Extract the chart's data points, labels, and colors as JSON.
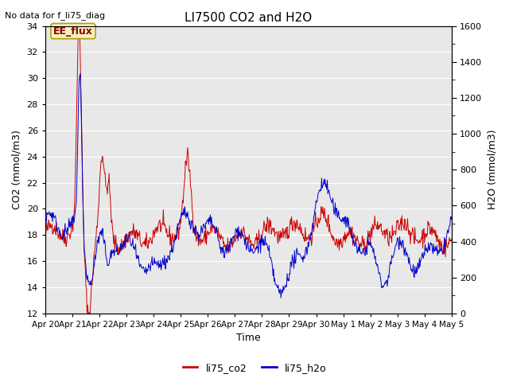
{
  "title": "LI7500 CO2 and H2O",
  "no_data_text": "No data for f_li75_diag",
  "xlabel": "Time",
  "ylabel_left": "CO2 (mmol/m3)",
  "ylabel_right": "H2O (mmol/m3)",
  "ylim_left": [
    12,
    34
  ],
  "ylim_right": [
    0,
    1600
  ],
  "yticks_left": [
    12,
    14,
    16,
    18,
    20,
    22,
    24,
    26,
    28,
    30,
    32,
    34
  ],
  "yticks_right_major": [
    0,
    200,
    400,
    600,
    800,
    1000,
    1200,
    1400,
    1600
  ],
  "yticks_right_minor": [
    100,
    300,
    500,
    700,
    900,
    1100,
    1300,
    1500
  ],
  "xtick_labels": [
    "Apr 20",
    "Apr 21",
    "Apr 22",
    "Apr 23",
    "Apr 24",
    "Apr 25",
    "Apr 26",
    "Apr 27",
    "Apr 28",
    "Apr 29",
    "Apr 30",
    "May 1",
    "May 2",
    "May 3",
    "May 4",
    "May 5"
  ],
  "annotation_text": "EE_flux",
  "bg_color": "#e8e8e8",
  "line_co2_color": "#cc0000",
  "line_h2o_color": "#0000cc",
  "legend_co2": "li75_co2",
  "legend_h2o": "li75_h2o",
  "seed": 42,
  "n_days": 15,
  "n_points": 720
}
